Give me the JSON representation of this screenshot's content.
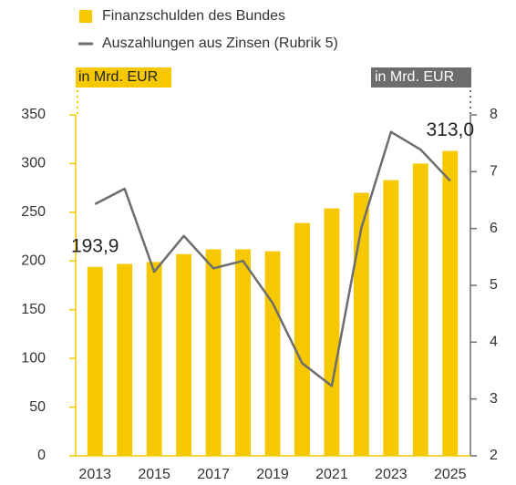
{
  "chart_data": {
    "type": "bar",
    "categories": [
      "2013",
      null,
      "2015",
      null,
      "2017",
      null,
      "2019",
      null,
      "2021",
      null,
      "2023",
      null,
      "2025"
    ],
    "series": [
      {
        "name": "Finanzschulden des Bundes",
        "color": "#f5c800",
        "values": [
          193.9,
          197,
          199,
          207,
          212,
          212,
          210,
          239,
          254,
          270,
          283,
          300,
          313.0
        ],
        "value_labels": [
          "193,9",
          null,
          null,
          null,
          null,
          null,
          null,
          null,
          null,
          null,
          null,
          null,
          "313,0"
        ]
      },
      {
        "name": "Auszahlungen aus Zinsen (Rubrik 5)",
        "color": "#6d6d6d",
        "type": "line",
        "axis": "y2",
        "values": [
          6.43,
          6.7,
          5.24,
          5.87,
          5.3,
          5.43,
          4.69,
          3.63,
          3.23,
          6.01,
          7.7,
          7.39,
          6.84
        ]
      }
    ],
    "y_label": "in Mrd. EUR",
    "y2_label": "in Mrd. EUR",
    "ylim": [
      0,
      350
    ],
    "yticks": [
      0,
      50,
      100,
      150,
      200,
      250,
      300,
      350
    ],
    "y2lim": [
      2,
      8
    ],
    "y2ticks": [
      2,
      3,
      4,
      5,
      6,
      7,
      8
    ]
  }
}
